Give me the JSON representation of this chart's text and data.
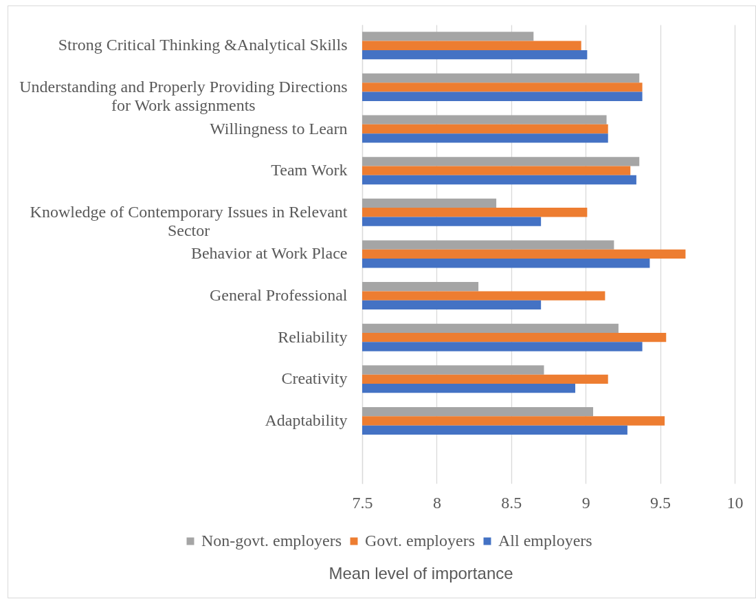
{
  "chart_data": {
    "type": "bar",
    "orientation": "horizontal",
    "xlabel": "Mean level of importance",
    "categories": [
      "Strong Critical Thinking &Analytical Skills",
      "Understanding and Properly Providing Directions for Work assignments",
      "Willingness to Learn",
      "Team Work",
      "Knowledge of Contemporary Issues in Relevant Sector",
      "Behavior at Work Place",
      "General Professional",
      "Reliability",
      "Creativity",
      "Adaptability"
    ],
    "series": [
      {
        "name": "Non-govt. employers",
        "color": "#a5a5a5",
        "values": [
          8.65,
          9.36,
          9.14,
          9.36,
          8.4,
          9.19,
          8.28,
          9.22,
          8.72,
          9.05
        ]
      },
      {
        "name": "Govt. employers",
        "color": "#ed7d31",
        "values": [
          8.97,
          9.38,
          9.15,
          9.3,
          9.01,
          9.67,
          9.13,
          9.54,
          9.15,
          9.53
        ]
      },
      {
        "name": "All employers",
        "color": "#4472c4",
        "values": [
          9.01,
          9.38,
          9.15,
          9.34,
          8.7,
          9.43,
          8.7,
          9.38,
          8.93,
          9.28
        ]
      }
    ],
    "xlim": [
      7.5,
      10
    ],
    "xticks": [
      7.5,
      8,
      8.5,
      9,
      9.5,
      10
    ],
    "grid": "x",
    "legend": "bottom"
  }
}
